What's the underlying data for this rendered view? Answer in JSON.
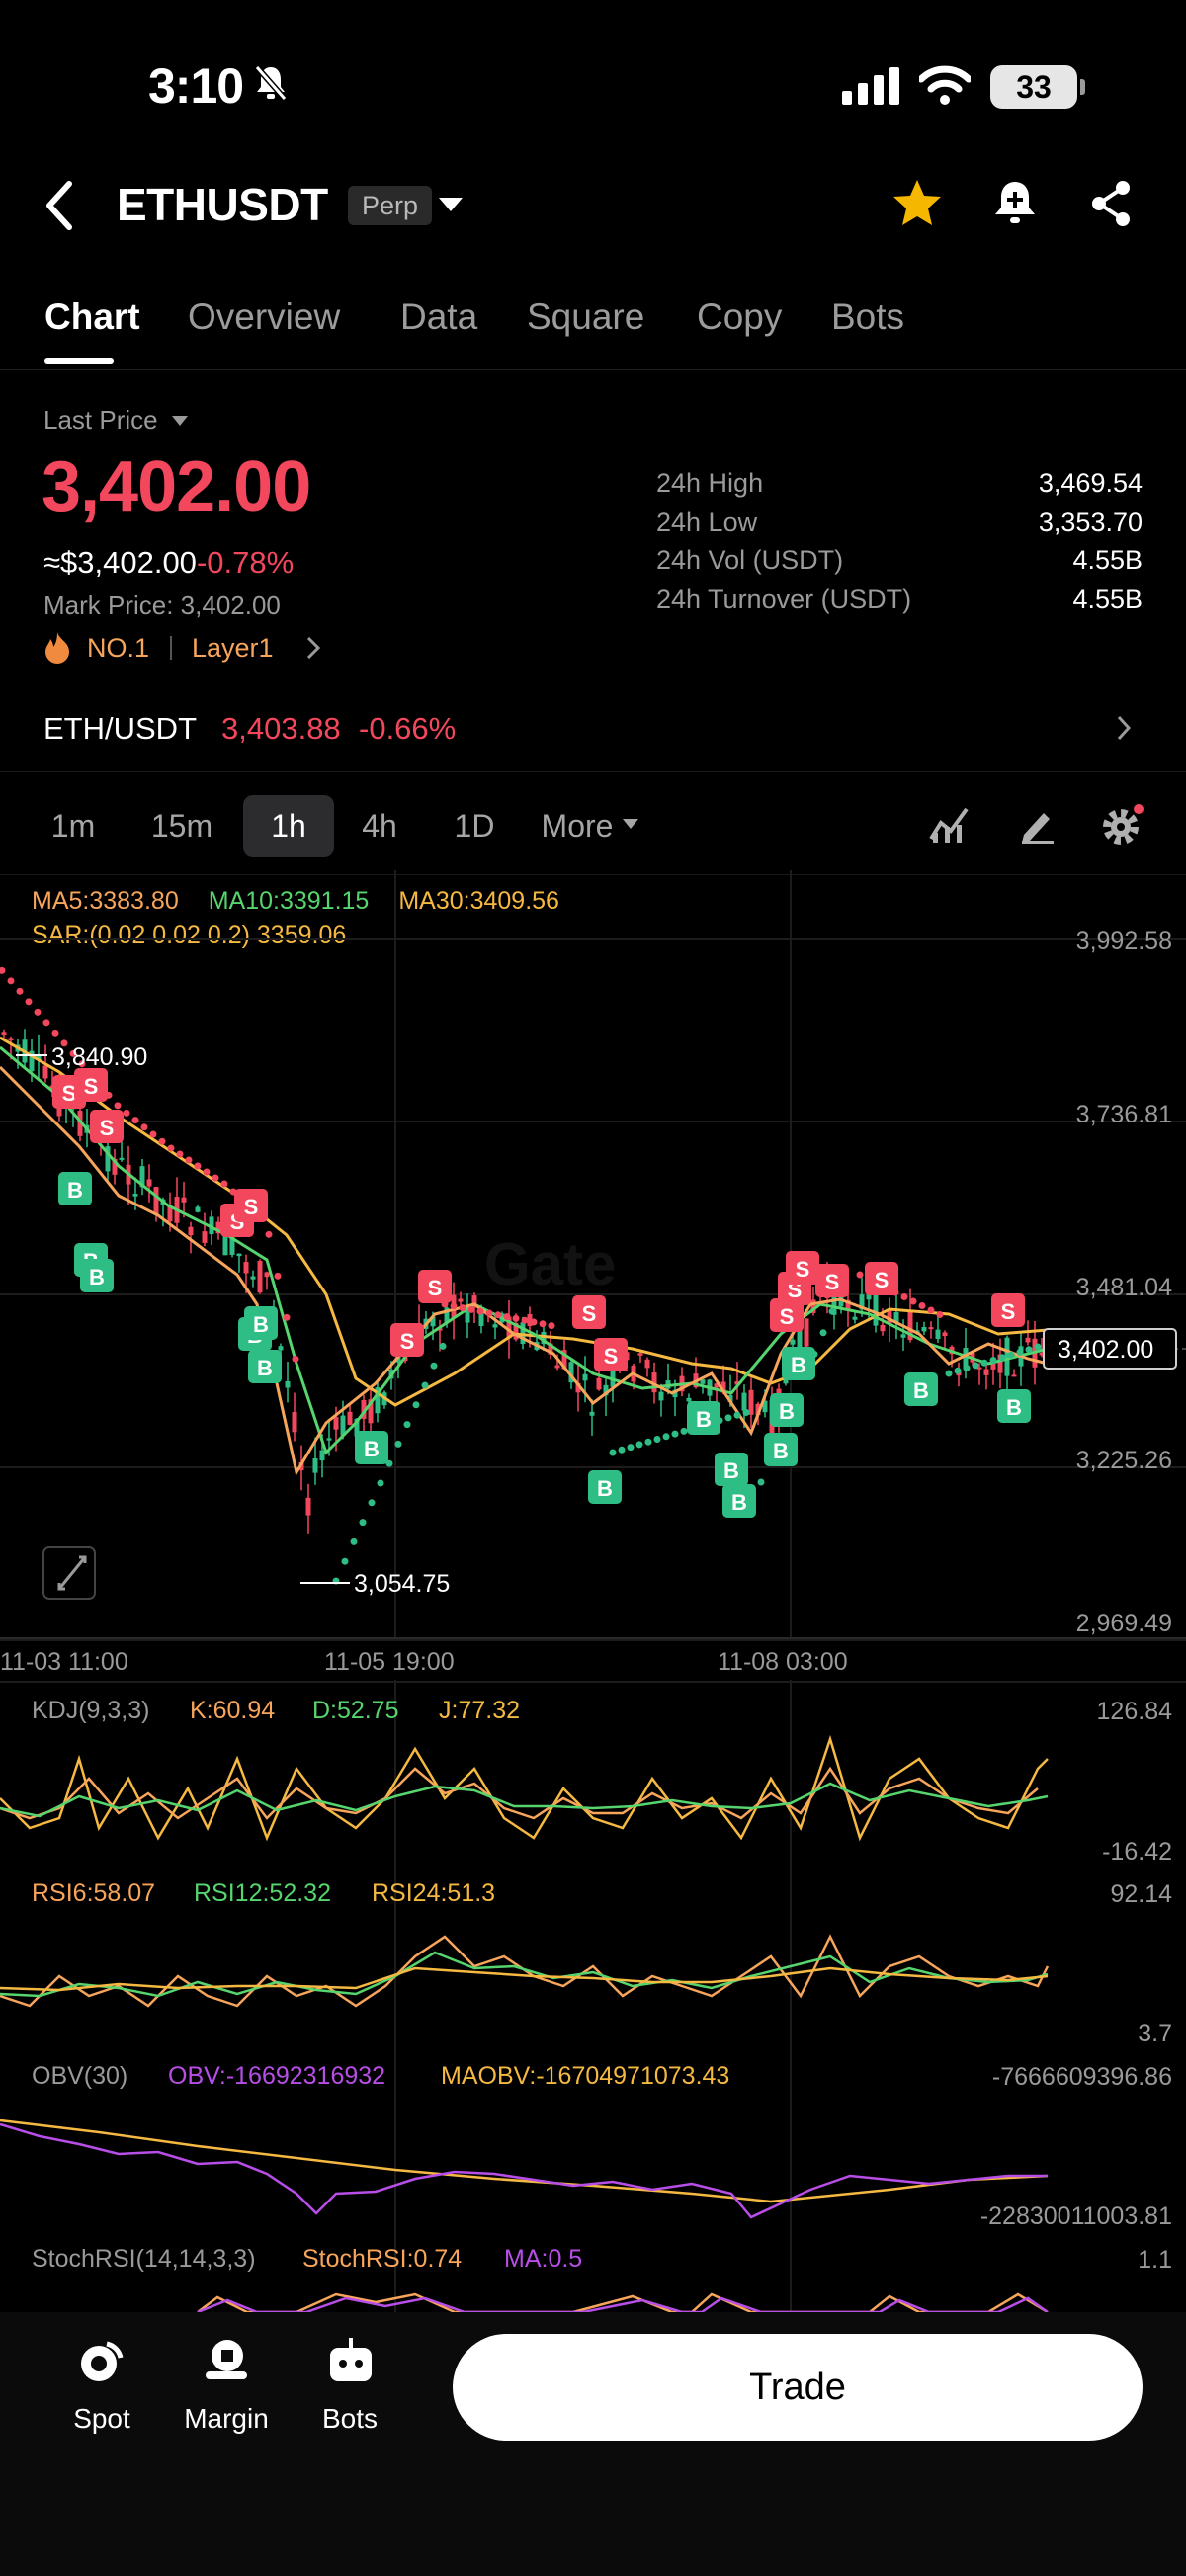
{
  "status_bar": {
    "time": "3:10",
    "battery": "33"
  },
  "header": {
    "symbol": "ETHUSDT",
    "badge": "Perp"
  },
  "tabs": [
    "Chart",
    "Overview",
    "Data",
    "Square",
    "Copy",
    "Bots"
  ],
  "price": {
    "last_price_label": "Last Price",
    "last_price": "3,402.00",
    "usd_approx": "≈$3,402.00",
    "change": "-0.78%",
    "mark_price": "Mark Price: 3,402.00",
    "rank": "NO.1",
    "tag": "Layer1",
    "stats": [
      {
        "label": "24h High",
        "value": "3,469.54"
      },
      {
        "label": "24h Low",
        "value": "3,353.70"
      },
      {
        "label": "24h Vol (USDT)",
        "value": "4.55B"
      },
      {
        "label": "24h Turnover (USDT)",
        "value": "4.55B"
      }
    ]
  },
  "spot_row": {
    "pair": "ETH/USDT",
    "price": "3,403.88",
    "change": "-0.66%"
  },
  "intervals": [
    "1m",
    "15m",
    "1h",
    "4h",
    "1D",
    "More"
  ],
  "main_chart": {
    "legend_ma": [
      "MA5:3383.80",
      "MA10:3391.15",
      "MA30:3409.56"
    ],
    "legend_sar": "SAR:(0.02 0.02 0.2) 3359.06",
    "y_ticks": [
      "3,992.58",
      "3,736.81",
      "3,481.04",
      "3,225.26",
      "2,969.49"
    ],
    "x_ticks": [
      "11-03 11:00",
      "11-05 19:00",
      "11-08 03:00"
    ],
    "high_label": "3,840.90",
    "low_label": "3,054.75",
    "current_price_tag": "3,402.00",
    "watermark": "Gate",
    "colors": {
      "up": "#2ebd85",
      "down": "#f2475d",
      "ma5": "#f7a55b",
      "ma10": "#56d46d",
      "ma30": "#f5b942"
    }
  },
  "indicators": {
    "kdj": {
      "title": "KDJ(9,3,3)",
      "k": "K:60.94",
      "d": "D:52.75",
      "j": "J:77.32",
      "top": "126.84",
      "bottom": "-16.42"
    },
    "rsi": {
      "r6": "RSI6:58.07",
      "r12": "RSI12:52.32",
      "r24": "RSI24:51.3",
      "top": "92.14",
      "bottom": "3.7"
    },
    "obv": {
      "title": "OBV(30)",
      "obv": "OBV:-16692316932",
      "maobv": "MAOBV:-16704971073.43",
      "top": "-7666609396.86",
      "bottom": "-22830011003.81"
    },
    "stochrsi": {
      "title": "StochRSI(14,14,3,3)",
      "val": "StochRSI:0.74",
      "ma": "MA:0.5",
      "top": "1.1"
    }
  },
  "bottom_nav": {
    "items": [
      "Spot",
      "Margin",
      "Bots"
    ],
    "trade": "Trade"
  },
  "chart_data": {
    "type": "line",
    "title": "",
    "x": [
      "11-03 11:00",
      "11-05 19:00",
      "11-08 03:00"
    ],
    "ylim": [
      2969.49,
      3992.58
    ],
    "series": [
      {
        "name": "MA5",
        "values": [
          3750,
          3380,
          3395
        ]
      },
      {
        "name": "MA10",
        "values": [
          3740,
          3300,
          3391
        ]
      },
      {
        "name": "MA30",
        "values": [
          3760,
          3260,
          3409
        ]
      }
    ]
  }
}
